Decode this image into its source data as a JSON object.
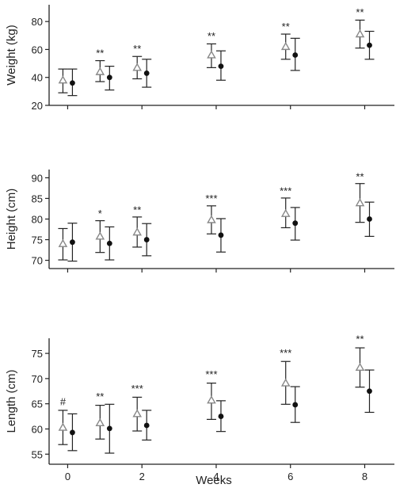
{
  "figure": {
    "xlabel": "Weeks",
    "colors": {
      "axis": "#222222",
      "open_marker": "#888888",
      "closed_marker": "#111111"
    }
  },
  "chart_data": [
    {
      "type": "scatter",
      "ylabel": "Weight (kg)",
      "ylim": [
        20,
        92
      ],
      "yticks": [
        20,
        40,
        60,
        80
      ],
      "xlim": [
        -0.5,
        8.8
      ],
      "xticks": [
        0,
        2,
        4,
        6,
        8
      ],
      "show_x_tick_labels": false,
      "grid": false,
      "series": [
        {
          "marker": "open-triangle",
          "x": [
            0,
            1,
            2,
            4,
            6,
            8
          ],
          "y": [
            38,
            44,
            47,
            56,
            62,
            71
          ],
          "err_low": [
            29,
            37,
            39,
            47,
            53,
            61
          ],
          "err_high": [
            46,
            52,
            55,
            64,
            71,
            81
          ]
        },
        {
          "marker": "filled-circle",
          "x": [
            0,
            1,
            2,
            4,
            6,
            8
          ],
          "y": [
            36,
            40,
            43,
            48,
            56,
            63
          ],
          "err_low": [
            27,
            31,
            33,
            38,
            45,
            53
          ],
          "err_high": [
            46,
            48,
            53,
            59,
            68,
            73
          ]
        }
      ],
      "annotations": [
        {
          "x": 1,
          "y": 55,
          "text": "**"
        },
        {
          "x": 2,
          "y": 58,
          "text": "**"
        },
        {
          "x": 4,
          "y": 67,
          "text": "**"
        },
        {
          "x": 6,
          "y": 74,
          "text": "**"
        },
        {
          "x": 8,
          "y": 84,
          "text": "**"
        }
      ]
    },
    {
      "type": "scatter",
      "ylabel": "Height (cm)",
      "ylim": [
        68,
        92
      ],
      "yticks": [
        70,
        75,
        80,
        85,
        90
      ],
      "xlim": [
        -0.5,
        8.8
      ],
      "xticks": [
        0,
        2,
        4,
        6,
        8
      ],
      "show_x_tick_labels": false,
      "grid": false,
      "series": [
        {
          "marker": "open-triangle",
          "x": [
            0,
            1,
            2,
            4,
            6,
            8
          ],
          "y": [
            74,
            75.8,
            76.8,
            79.8,
            81.3,
            83.9
          ],
          "err_low": [
            70.1,
            71.9,
            73.2,
            76.4,
            77.9,
            79.2
          ],
          "err_high": [
            77.7,
            79.6,
            80.5,
            83.2,
            85.1,
            88.6
          ]
        },
        {
          "marker": "filled-circle",
          "x": [
            0,
            1,
            2,
            4,
            6,
            8
          ],
          "y": [
            74.4,
            74.1,
            75,
            76.1,
            79,
            80
          ],
          "err_low": [
            69.8,
            70.1,
            71.1,
            72,
            74.9,
            75.8
          ],
          "err_high": [
            79,
            78.1,
            78.9,
            80.1,
            82.8,
            84.1
          ]
        }
      ],
      "annotations": [
        {
          "x": 1,
          "y": 80.5,
          "text": "*"
        },
        {
          "x": 2,
          "y": 81.3,
          "text": "**"
        },
        {
          "x": 4,
          "y": 84.1,
          "text": "***"
        },
        {
          "x": 6,
          "y": 86,
          "text": "***"
        },
        {
          "x": 8,
          "y": 89.4,
          "text": "**"
        }
      ]
    },
    {
      "type": "scatter",
      "ylabel": "Length (cm)",
      "ylim": [
        53,
        78
      ],
      "yticks": [
        55,
        60,
        65,
        70,
        75
      ],
      "xlim": [
        -0.5,
        8.8
      ],
      "xticks": [
        0,
        2,
        4,
        6,
        8
      ],
      "show_x_tick_labels": true,
      "grid": false,
      "series": [
        {
          "marker": "open-triangle",
          "x": [
            0,
            1,
            2,
            4,
            6,
            8
          ],
          "y": [
            60.3,
            61.2,
            63,
            65.7,
            69.1,
            72.2
          ],
          "err_low": [
            56.9,
            58,
            59.6,
            61.9,
            64.9,
            68.3
          ],
          "err_high": [
            63.7,
            64.7,
            66.3,
            69.1,
            73.4,
            76.1
          ]
        },
        {
          "marker": "filled-circle",
          "x": [
            0,
            1,
            2,
            4,
            6,
            8
          ],
          "y": [
            59.3,
            60.1,
            60.7,
            62.5,
            64.8,
            67.5
          ],
          "err_low": [
            55.7,
            55.2,
            57.8,
            59.5,
            61.3,
            63.3
          ],
          "err_high": [
            63,
            64.9,
            63.7,
            65.6,
            68.4,
            71.7
          ]
        }
      ],
      "annotations": [
        {
          "x": 0,
          "y": 64.7,
          "text": "#"
        },
        {
          "x": 1,
          "y": 65.7,
          "text": "**"
        },
        {
          "x": 2,
          "y": 67.3,
          "text": "***"
        },
        {
          "x": 4,
          "y": 70.1,
          "text": "***"
        },
        {
          "x": 6,
          "y": 74.4,
          "text": "***"
        },
        {
          "x": 8,
          "y": 77.1,
          "text": "**"
        }
      ]
    }
  ]
}
